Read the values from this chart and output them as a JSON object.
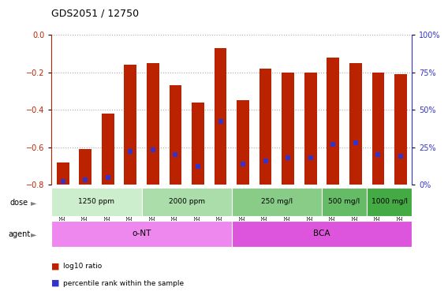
{
  "title": "GDS2051 / 12750",
  "samples": [
    "GSM105783",
    "GSM105784",
    "GSM105785",
    "GSM105786",
    "GSM105787",
    "GSM105788",
    "GSM105789",
    "GSM105790",
    "GSM105775",
    "GSM105776",
    "GSM105777",
    "GSM105778",
    "GSM105779",
    "GSM105780",
    "GSM105781",
    "GSM105782"
  ],
  "log10_ratio": [
    -0.68,
    -0.61,
    -0.42,
    -0.16,
    -0.15,
    -0.27,
    -0.36,
    -0.07,
    -0.35,
    -0.18,
    -0.2,
    -0.2,
    -0.12,
    -0.15,
    -0.2,
    -0.21
  ],
  "percentile_rank": [
    2,
    3,
    5,
    22,
    23,
    20,
    12,
    42,
    14,
    16,
    18,
    18,
    27,
    28,
    20,
    19
  ],
  "bar_color": "#bb2200",
  "dot_color": "#3333cc",
  "ylim_min": -0.8,
  "ylim_max": 0.0,
  "y2lim_min": 0,
  "y2lim_max": 100,
  "yticks": [
    0.0,
    -0.2,
    -0.4,
    -0.6,
    -0.8
  ],
  "y2ticks": [
    0,
    25,
    50,
    75,
    100
  ],
  "y2tick_labels": [
    "0%",
    "25%",
    "50%",
    "75%",
    "100%"
  ],
  "dose_groups": [
    {
      "label": "1250 ppm",
      "start": 0,
      "end": 4,
      "color": "#cceecc"
    },
    {
      "label": "2000 ppm",
      "start": 4,
      "end": 8,
      "color": "#aaddaa"
    },
    {
      "label": "250 mg/l",
      "start": 8,
      "end": 12,
      "color": "#88cc88"
    },
    {
      "label": "500 mg/l",
      "start": 12,
      "end": 14,
      "color": "#66bb66"
    },
    {
      "label": "1000 mg/l",
      "start": 14,
      "end": 16,
      "color": "#44aa44"
    }
  ],
  "agent_groups": [
    {
      "label": "o-NT",
      "start": 0,
      "end": 8,
      "color": "#ee88ee"
    },
    {
      "label": "BCA",
      "start": 8,
      "end": 16,
      "color": "#dd55dd"
    }
  ],
  "bar_width": 0.55,
  "dot_size": 20,
  "grid_color": "#aaaaaa",
  "spine_color": "#cccccc",
  "bg_color": "#ffffff",
  "label_fontsize": 7,
  "tick_fontsize": 7,
  "title_fontsize": 9,
  "sample_fontsize": 5.5
}
